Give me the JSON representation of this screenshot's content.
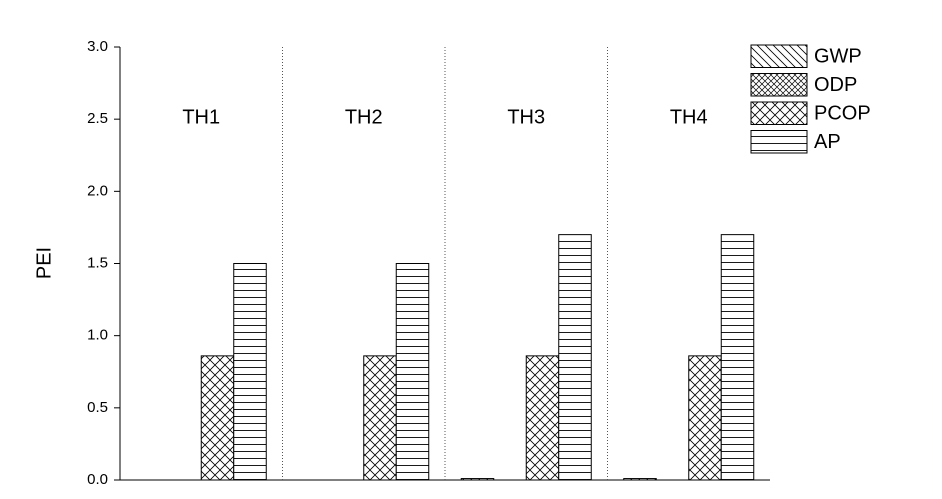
{
  "chart_data": {
    "type": "bar",
    "y_label": "PEI",
    "categories": [
      "TH1",
      "TH2",
      "TH3",
      "TH4"
    ],
    "series": [
      {
        "name": "GWP",
        "color": "#000000",
        "values": [
          0,
          0,
          0.01,
          0.01
        ]
      },
      {
        "name": "ODP",
        "color": "#000000",
        "values": [
          0,
          0,
          0,
          0
        ]
      },
      {
        "name": "PCOP",
        "color": "#000000",
        "values": [
          0.86,
          0.86,
          0.86,
          0.86
        ]
      },
      {
        "name": "AP",
        "color": "#000000",
        "values": [
          1.5,
          1.5,
          1.7,
          1.7
        ]
      }
    ],
    "ylim": [
      0,
      3
    ],
    "yticks": [
      {
        "value": 0,
        "label": "0.0"
      },
      {
        "value": 0.5,
        "label": "0.5"
      },
      {
        "value": 1,
        "label": "1.0"
      },
      {
        "value": 1.5,
        "label": "1.5"
      },
      {
        "value": 2,
        "label": "2.0"
      },
      {
        "value": 2.5,
        "label": "2.5"
      },
      {
        "value": 3,
        "label": "3.0"
      }
    ],
    "legend": "top-right"
  }
}
